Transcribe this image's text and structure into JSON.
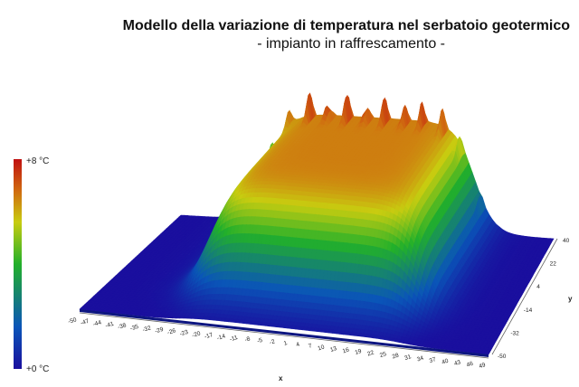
{
  "chart_data": {
    "type": "surface",
    "title": "Modello della variazione di temperatura nel serbatoio geotermico",
    "subtitle": "- impianto in raffrescamento -",
    "xlabel": "x",
    "ylabel": "y",
    "x_ticks": [
      "-50",
      "-47",
      "-44",
      "-41",
      "-38",
      "-35",
      "-32",
      "-29",
      "-26",
      "-23",
      "-20",
      "-17",
      "-14",
      "-11",
      "-8",
      "-5",
      "-2",
      "1",
      "4",
      "7",
      "10",
      "13",
      "16",
      "19",
      "22",
      "25",
      "28",
      "31",
      "34",
      "37",
      "40",
      "43",
      "46",
      "49"
    ],
    "y_ticks": [
      "-50",
      "-32",
      "-14",
      "4",
      "22",
      "40"
    ],
    "xlim": [
      -50,
      49
    ],
    "ylim": [
      -50,
      40
    ],
    "colorbar": {
      "min_label": "+0 °C",
      "max_label": "+8 °C",
      "min": 0,
      "max": 8,
      "colors": [
        "#1a0f9e",
        "#0a55b8",
        "#22b02a",
        "#c8cc10",
        "#d06a10",
        "#c01010"
      ]
    },
    "plateau_x": [
      -26,
      28
    ],
    "plateau_y": [
      -32,
      40
    ],
    "max_value": 8
  }
}
